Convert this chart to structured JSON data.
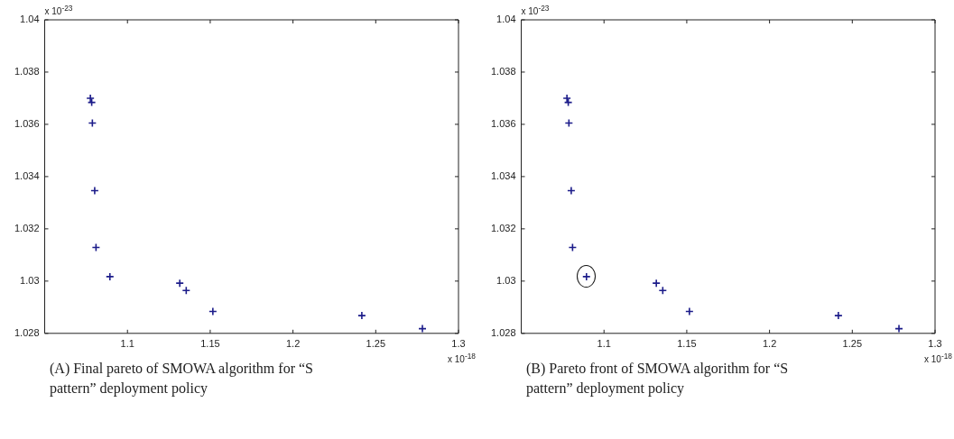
{
  "chart_data": [
    {
      "type": "scatter",
      "title": "(A) Final pareto of  SMOWA  algorithm for “S pattern” deployment policy",
      "x": [
        1.0776,
        1.0784,
        1.0788,
        1.0802,
        1.081,
        1.0894,
        1.1316,
        1.1355,
        1.1516,
        1.2416,
        1.2782
      ],
      "values": [
        1.037,
        1.03684,
        1.03605,
        1.03346,
        1.03129,
        1.03017,
        1.02992,
        1.02964,
        1.02884,
        1.02868,
        1.02818
      ],
      "color": "#1c1c8a",
      "marker": "cross",
      "xlim": [
        1.05,
        1.3
      ],
      "xticks": [
        1.1,
        1.15,
        1.2,
        1.25,
        1.3
      ],
      "ylim": [
        1.028,
        1.04
      ],
      "yticks": [
        1.028,
        1.03,
        1.032,
        1.034,
        1.036,
        1.038,
        1.04
      ],
      "grid": false,
      "legend": false,
      "annotations": [
        "x 10$^{-23}$",
        "x 10$^{-18}$"
      ]
    },
    {
      "type": "scatter",
      "title": "(B) Pareto front of  SMOWA  algorithm for “S pattern” deployment policy",
      "x": [
        1.0776,
        1.0784,
        1.0788,
        1.0802,
        1.081,
        1.0894,
        1.1316,
        1.1355,
        1.1516,
        1.2416,
        1.2782
      ],
      "values": [
        1.037,
        1.03684,
        1.03605,
        1.03346,
        1.03129,
        1.03017,
        1.02992,
        1.02964,
        1.02884,
        1.02868,
        1.02818
      ],
      "color": "#1c1c8a",
      "marker": "cross",
      "xlim": [
        1.05,
        1.3
      ],
      "xticks": [
        1.1,
        1.15,
        1.2,
        1.25,
        1.3
      ],
      "ylim": [
        1.028,
        1.04
      ],
      "yticks": [
        1.028,
        1.03,
        1.032,
        1.034,
        1.036,
        1.038,
        1.04
      ],
      "grid": false,
      "legend": false,
      "annotations": [
        "x 10$^{-23}$",
        "x 10$^{-18}$"
      ]
    }
  ]
}
